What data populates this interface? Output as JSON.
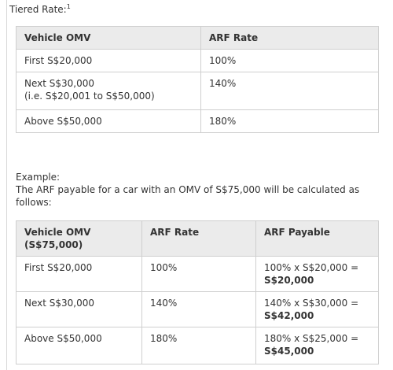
{
  "tiered": {
    "title": "Tiered Rate:",
    "footnote": "1",
    "table": {
      "header": [
        "Vehicle OMV",
        "ARF Rate"
      ],
      "rows": [
        [
          [
            "First S$20,000"
          ],
          "100%"
        ],
        [
          [
            "Next S$30,000",
            "(i.e. S$20,001 to S$50,000)"
          ],
          "140%"
        ],
        [
          [
            "Above S$50,000"
          ],
          "180%"
        ]
      ]
    }
  },
  "example": {
    "label": "Example:",
    "text": "The ARF payable for a car with an OMV of S$75,000 will be calculated as follows:",
    "table": {
      "header": [
        [
          "Vehicle OMV",
          "(S$75,000)"
        ],
        "ARF Rate",
        "ARF Payable"
      ],
      "rows": [
        [
          "First S$20,000",
          "100%",
          {
            "formula": "100% x S$20,000 =",
            "result": "S$20,000"
          }
        ],
        [
          "Next S$30,000",
          "140%",
          {
            "formula": "140% x S$30,000 =",
            "result": "S$42,000"
          }
        ],
        [
          "Above S$50,000",
          "180%",
          {
            "formula": "180% x S$25,000 =",
            "result": "S$45,000"
          }
        ]
      ]
    }
  }
}
